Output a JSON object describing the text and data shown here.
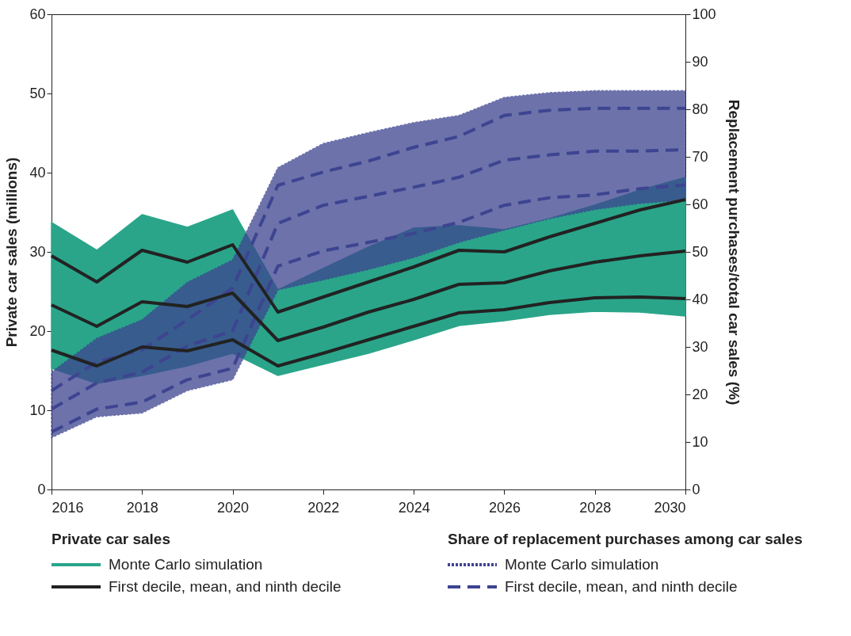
{
  "chart_data": {
    "type": "line",
    "x": [
      2016,
      2017,
      2018,
      2019,
      2020,
      2021,
      2022,
      2023,
      2024,
      2025,
      2026,
      2027,
      2028,
      2029,
      2030
    ],
    "xlim": [
      2016,
      2030
    ],
    "xticks": [
      2016,
      2018,
      2020,
      2022,
      2024,
      2026,
      2028,
      2030
    ],
    "ylabel": "Private car sales (millions)",
    "ylim": [
      0,
      60
    ],
    "yticks": [
      0,
      10,
      20,
      30,
      40,
      50,
      60
    ],
    "y2label": "Replacement purchases/total car sales (%)",
    "y2lim": [
      0,
      100
    ],
    "y2ticks": [
      0,
      10,
      20,
      30,
      40,
      50,
      60,
      70,
      80,
      90,
      100
    ],
    "grid": false,
    "legend": "bottom",
    "annotations": [
      "Private car sales",
      "Share of replacement purchases among car sales"
    ],
    "series": [
      {
        "name": "Monte Carlo simulation",
        "type": "area",
        "axis": "y",
        "color": "#2aa58a",
        "line_style": "solid",
        "values": [
          null,
          null,
          null,
          null,
          null,
          null,
          null,
          null,
          null,
          null,
          null,
          null,
          null,
          null,
          null
        ],
        "upper": [
          33.7,
          30.2,
          34.7,
          33.1,
          35.3,
          25.2,
          27.9,
          30.6,
          33.0,
          33.3,
          32.8,
          34.2,
          35.9,
          37.8,
          39.4
        ],
        "lower": [
          15.3,
          13.4,
          14.4,
          15.6,
          17.2,
          14.4,
          15.8,
          17.2,
          18.9,
          20.7,
          21.3,
          22.1,
          22.5,
          22.4,
          21.9
        ]
      },
      {
        "name": "First decile, mean, and ninth decile",
        "type": "line",
        "axis": "y",
        "color": "#222222",
        "line_style": "solid",
        "values": [
          29.5,
          26.2,
          30.2,
          28.7,
          30.9,
          22.4,
          24.3,
          26.2,
          28.1,
          30.2,
          30.0,
          31.9,
          33.6,
          35.3,
          36.6
        ]
      },
      {
        "type": "line",
        "axis": "y",
        "color": "#222222",
        "line_style": "solid",
        "values": [
          23.3,
          20.6,
          23.7,
          23.1,
          24.8,
          18.8,
          20.5,
          22.4,
          24.0,
          25.9,
          26.1,
          27.6,
          28.7,
          29.5,
          30.1
        ]
      },
      {
        "axis": "y",
        "color": "#222222",
        "line_style": "solid",
        "values": [
          17.6,
          15.6,
          18.0,
          17.5,
          18.9,
          15.6,
          17.2,
          18.9,
          20.6,
          22.3,
          22.7,
          23.6,
          24.2,
          24.3,
          24.1
        ]
      },
      {
        "name": "Monte Carlo simulation",
        "type": "area",
        "axis": "y2",
        "color": "#3d4490",
        "line_style": "dotted",
        "values": [
          null,
          null,
          null,
          null,
          null,
          null,
          null,
          null,
          null,
          null,
          null,
          null,
          null,
          null,
          null
        ],
        "upper": [
          24.7,
          31.8,
          35.7,
          43.6,
          48.3,
          67.7,
          72.8,
          75.1,
          77.2,
          78.7,
          82.5,
          83.5,
          83.9,
          83.9,
          83.9
        ],
        "lower": [
          10.9,
          15.3,
          16.1,
          20.8,
          23.1,
          42.0,
          44.1,
          46.3,
          48.8,
          52.0,
          54.6,
          57.0,
          58.9,
          60.2,
          60.9
        ]
      },
      {
        "name": "First decile, mean, and ninth decile",
        "type": "line",
        "axis": "y2",
        "color": "#3d4490",
        "line_style": "dashed",
        "values": [
          20.8,
          26.8,
          29.4,
          35.7,
          42.4,
          64.0,
          66.8,
          69.1,
          72.0,
          74.3,
          78.7,
          79.8,
          80.2,
          80.2,
          80.2
        ]
      },
      {
        "type": "line",
        "axis": "y2",
        "color": "#3d4490",
        "line_style": "dashed",
        "values": [
          16.9,
          22.4,
          24.7,
          30.2,
          33.4,
          56.0,
          59.8,
          61.7,
          63.6,
          65.7,
          69.3,
          70.4,
          71.2,
          71.2,
          71.5
        ]
      },
      {
        "type": "line",
        "axis": "y2",
        "color": "#3d4490",
        "line_style": "dashed",
        "values": [
          12.1,
          16.9,
          18.4,
          23.1,
          25.5,
          47.0,
          50.2,
          52.0,
          53.9,
          56.2,
          59.8,
          61.4,
          62.0,
          63.3,
          64.1
        ]
      }
    ]
  }
}
